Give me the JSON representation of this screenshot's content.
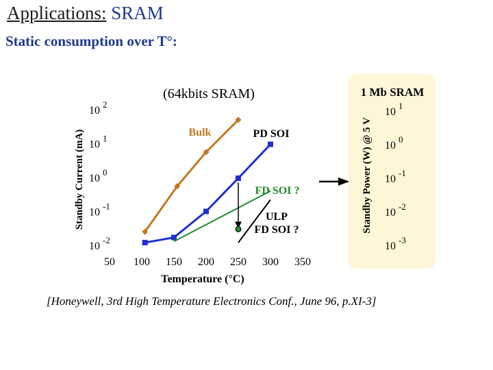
{
  "slide": {
    "title_prefix": "Applications:",
    "title_suffix": "SRAM",
    "subtitle": "Static consumption over T°:",
    "reference": "[Honeywell, 3rd High Temperature Electronics Conf., June 96, p.XI-3]"
  },
  "colors": {
    "bulk": "#c07820",
    "pd_soi": "#1f2fd0",
    "fd_soi": "#1e8a2e",
    "ulp": "#000000",
    "panel": "#fdf7d8",
    "accent": "#1f3a8a"
  },
  "arrow": {
    "direction": "right",
    "points_from": "main-chart",
    "points_to": "side-panel"
  },
  "chart_data": [
    {
      "type": "line",
      "title": "(64kbits SRAM)",
      "xlabel": "Temperature (°C)",
      "ylabel": "Standby Current (mA)",
      "xlim": [
        50,
        350
      ],
      "ylim_log10": [
        -2,
        2
      ],
      "yscale": "log",
      "x_ticks": [
        "50",
        "100",
        "150",
        "200",
        "250",
        "300",
        "350"
      ],
      "y_ticks": [
        {
          "base": "10",
          "exp": "2"
        },
        {
          "base": "10",
          "exp": "1"
        },
        {
          "base": "10",
          "exp": "0"
        },
        {
          "base": "10",
          "exp": "-1"
        },
        {
          "base": "10",
          "exp": "-2"
        }
      ],
      "series": [
        {
          "name": "Bulk",
          "marker": "diamond",
          "x": [
            105,
            155,
            200,
            250
          ],
          "y": [
            0.025,
            0.55,
            5.6,
            50
          ]
        },
        {
          "name": "PD SOI",
          "marker": "square",
          "x": [
            105,
            150,
            200,
            250,
            300
          ],
          "y": [
            0.012,
            0.017,
            0.1,
            0.95,
            9.5
          ]
        },
        {
          "name": "FD SOI ?",
          "marker": "none",
          "x": [
            150,
            300
          ],
          "y": [
            0.013,
            0.4
          ]
        },
        {
          "name": "ULP FD SOI ?",
          "marker": "none",
          "x": [
            250,
            300
          ],
          "y": [
            0.012,
            0.22
          ]
        }
      ],
      "annotations": [
        {
          "text": "Bulk"
        },
        {
          "text": "PD SOI"
        },
        {
          "text": "FD SOI ?"
        },
        {
          "text_lines": [
            "ULP",
            "FD SOI ?"
          ]
        }
      ],
      "projection": {
        "from": {
          "x": 250,
          "y": 0.95
        },
        "to": {
          "x": 250,
          "y": 0.03
        }
      }
    },
    {
      "type": "line",
      "title": "1 Mb SRAM",
      "ylabel": "Standby Power (W) @ 5 V",
      "yscale": "log",
      "y_ticks": [
        {
          "base": "10",
          "exp": "1"
        },
        {
          "base": "10",
          "exp": "0"
        },
        {
          "base": "10",
          "exp": "-1"
        },
        {
          "base": "10",
          "exp": "-2"
        },
        {
          "base": "10",
          "exp": "-3"
        }
      ]
    }
  ]
}
